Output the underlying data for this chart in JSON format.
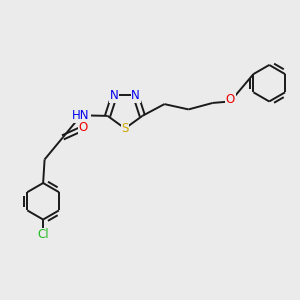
{
  "background_color": "#ebebeb",
  "bond_color": "#1a1a1a",
  "atom_colors": {
    "N": "#0000ee",
    "S": "#ccaa00",
    "O": "#ee0000",
    "Cl": "#22bb22",
    "H": "#888888",
    "C": "#1a1a1a"
  },
  "font_size": 8.5,
  "fig_width": 3.0,
  "fig_height": 3.0,
  "dpi": 100
}
